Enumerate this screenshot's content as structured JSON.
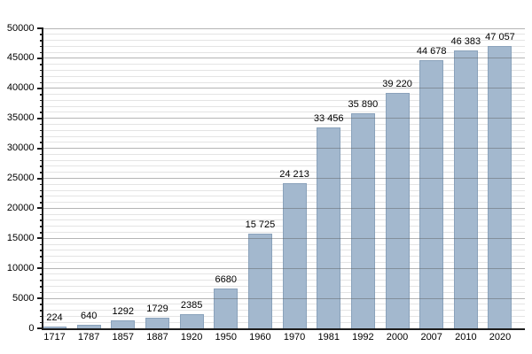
{
  "chart_data": {
    "type": "bar",
    "title": "",
    "xlabel": "",
    "ylabel": "",
    "categories": [
      "1717",
      "1787",
      "1857",
      "1887",
      "1920",
      "1950",
      "1960",
      "1970",
      "1981",
      "1992",
      "2000",
      "2007",
      "2010",
      "2020"
    ],
    "values": [
      224,
      640,
      1292,
      1729,
      2385,
      6680,
      15725,
      24213,
      33456,
      35890,
      39220,
      44678,
      46383,
      47057
    ],
    "value_labels": [
      "224",
      "640",
      "1292",
      "1729",
      "2385",
      "6680",
      "15 725",
      "24 213",
      "33 456",
      "35 890",
      "39 220",
      "44 678",
      "46 383",
      "47 057"
    ],
    "ylim": [
      0,
      50000
    ],
    "y_major_step": 5000,
    "y_minor_step": 1000,
    "y_tick_labels": [
      "0",
      "5000",
      "10000",
      "15000",
      "20000",
      "25000",
      "30000",
      "35000",
      "40000",
      "45000",
      "50000"
    ],
    "grid": {
      "horizontal_major": true,
      "horizontal_minor": true,
      "vertical": false
    },
    "legend": "none",
    "colors": {
      "background": "#ffffff",
      "bar_fill": "#a3b8ce",
      "bar_border": "#8aa2bb",
      "major_gridline": "#9a9a9a",
      "minor_gridline": "#e4e4e4",
      "axis": "#1c1c1c",
      "text": "#000000"
    }
  }
}
